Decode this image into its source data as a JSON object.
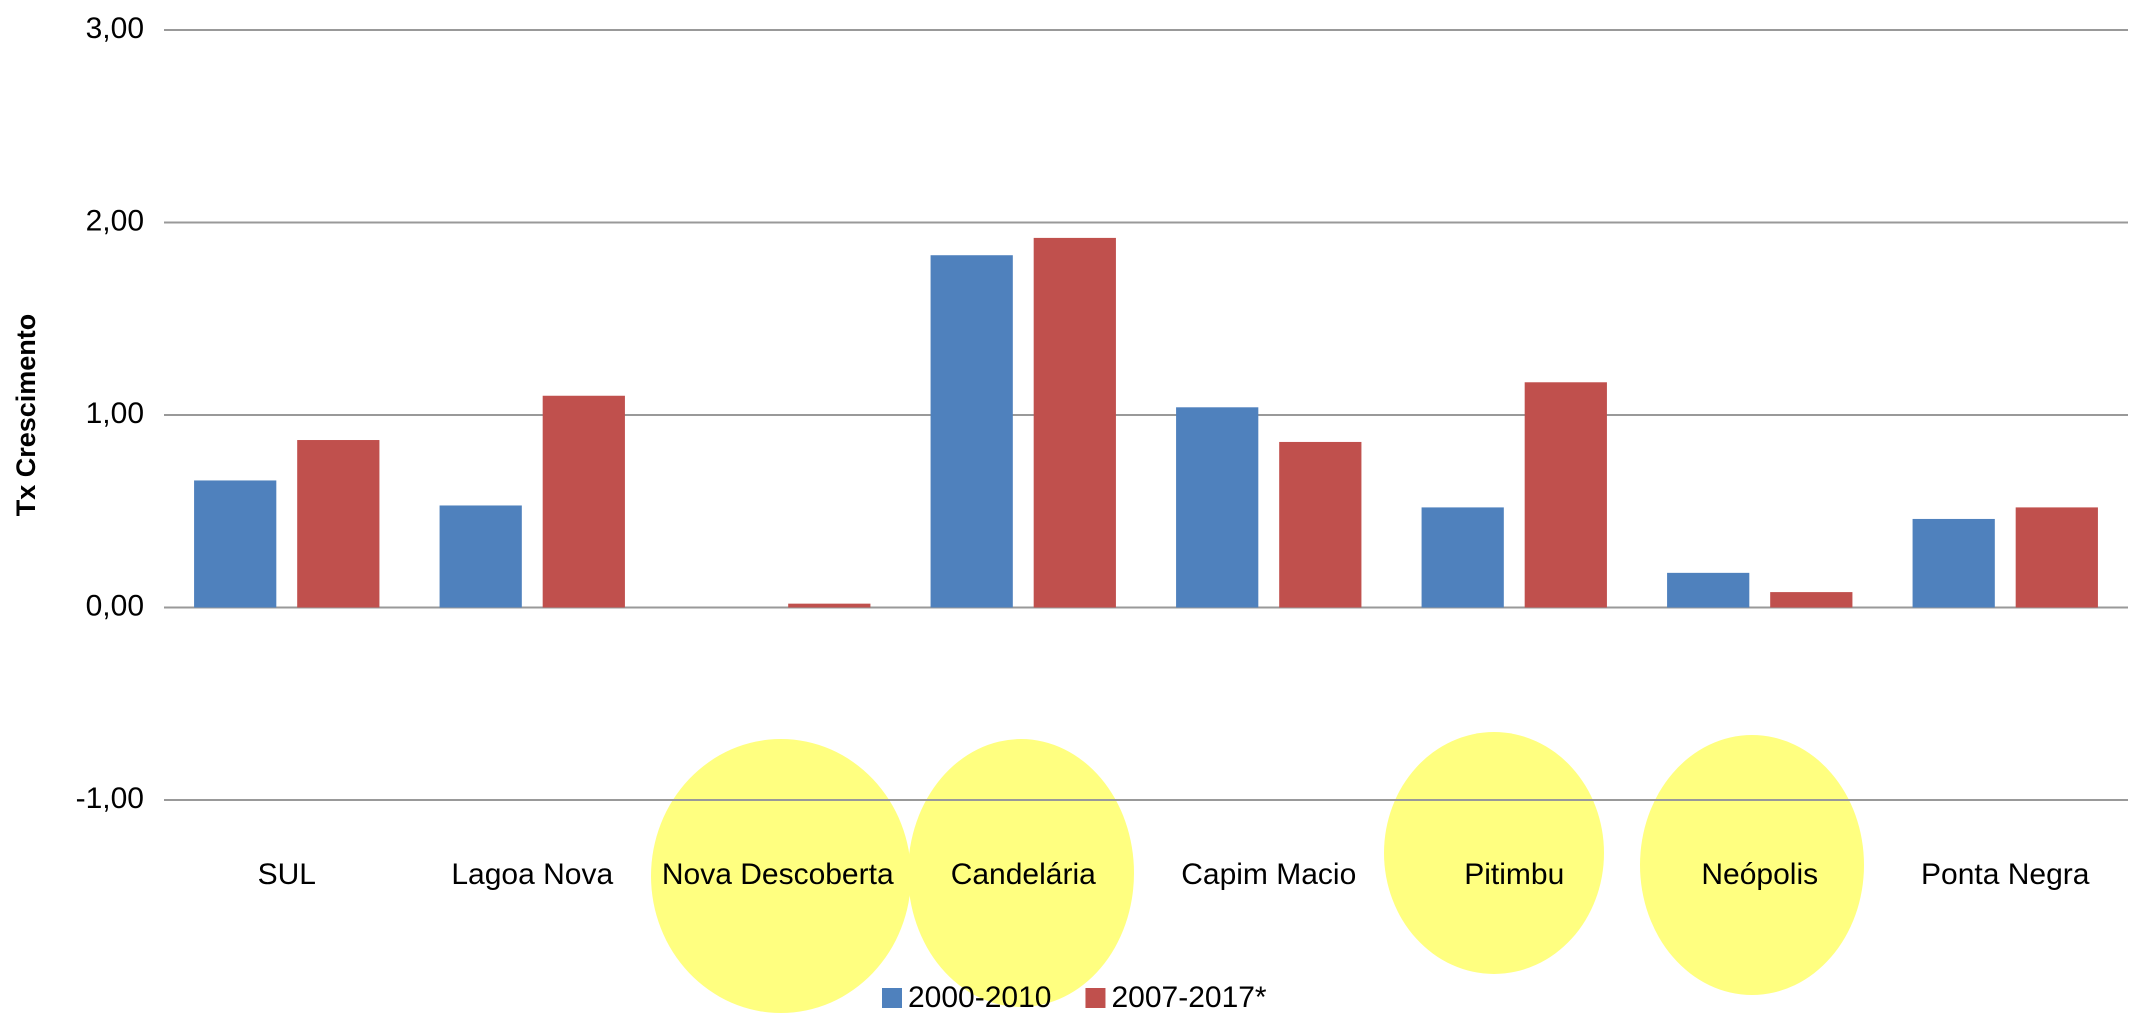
{
  "chart_data": {
    "type": "bar",
    "y_axis_label": "Tx Crescimento",
    "categories": [
      "SUL",
      "Lagoa Nova",
      "Nova Descoberta",
      "Candelária",
      "Capim Macio",
      "Pitimbu",
      "Neópolis",
      "Ponta Negra"
    ],
    "series": [
      {
        "name": "2000-2010",
        "color": "#4f81bd",
        "values": [
          0.66,
          0.53,
          0,
          1.83,
          1.04,
          0.52,
          0.18,
          0.46
        ]
      },
      {
        "name": "2007-2017*",
        "color": "#c0504d",
        "values": [
          0.87,
          1.1,
          0.02,
          1.92,
          0.86,
          1.17,
          0.08,
          0.52
        ]
      }
    ],
    "ylim": [
      -1,
      3
    ],
    "yticks": [
      {
        "value": -1,
        "label": "-1,00"
      },
      {
        "value": 0,
        "label": "0,00"
      },
      {
        "value": 1,
        "label": "1,00"
      },
      {
        "value": 2,
        "label": "2,00"
      },
      {
        "value": 3,
        "label": "3,00"
      }
    ],
    "grid": true
  }
}
